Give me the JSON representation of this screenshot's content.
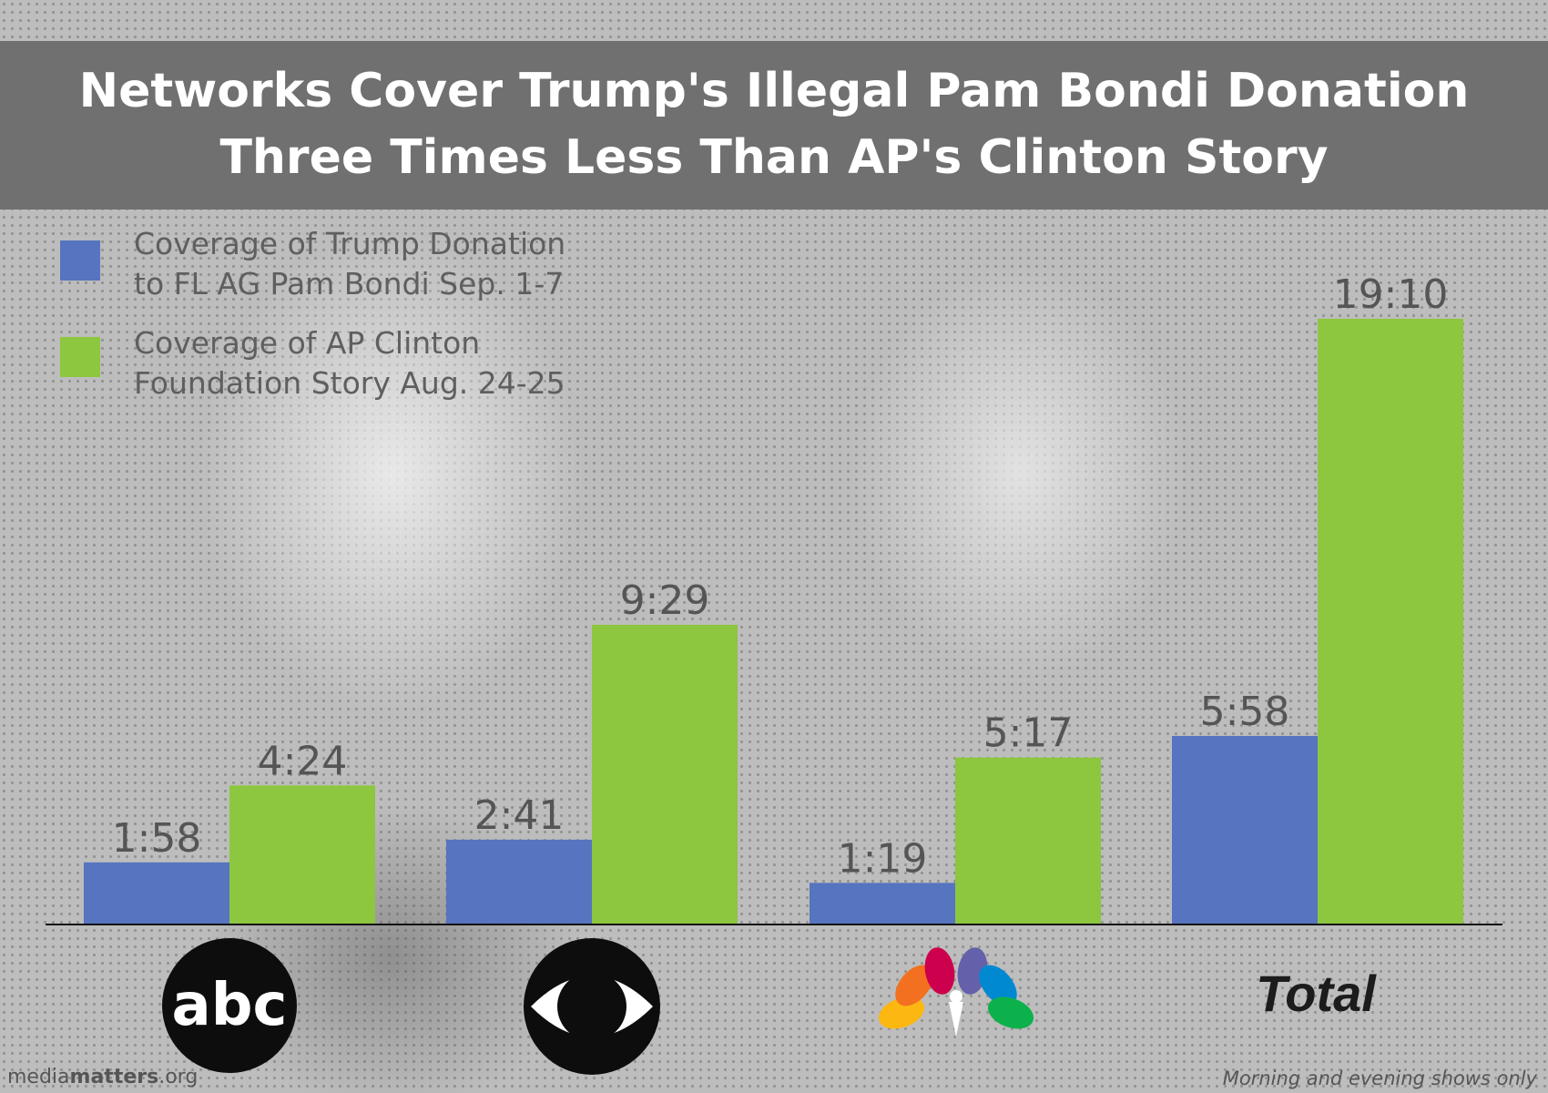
{
  "title_lines": [
    "Networks Cover Trump's Illegal Pam Bondi Donation",
    "Three Times Less Than AP's Clinton Story"
  ],
  "legend": [
    {
      "line1": "Coverage of Trump Donation",
      "line2": "to FL AG Pam Bondi Sep. 1-7",
      "color": "#5674bf"
    },
    {
      "line1": "Coverage of AP Clinton",
      "line2": "Foundation Story Aug. 24-25",
      "color": "#8dc63f"
    }
  ],
  "chart_data": {
    "type": "bar",
    "categories": [
      "abc",
      "CBS",
      "NBC",
      "Total"
    ],
    "category_display": [
      "abc-logo",
      "cbs-eye-logo",
      "nbc-peacock-logo",
      "Total"
    ],
    "series": [
      {
        "name": "Coverage of Trump Donation to FL AG Pam Bondi Sep. 1-7",
        "color": "#5674bf",
        "values": [
          118,
          161,
          79,
          358
        ],
        "labels": [
          "1:58",
          "2:41",
          "1:19",
          "5:58"
        ]
      },
      {
        "name": "Coverage of AP Clinton Foundation Story Aug. 24-25",
        "color": "#8dc63f",
        "values": [
          264,
          569,
          317,
          1150
        ],
        "labels": [
          "4:24",
          "9:29",
          "5:17",
          "19:10"
        ]
      }
    ],
    "value_unit": "seconds",
    "ylim": [
      0,
      1150
    ],
    "grid": false,
    "legend_position": "top-left"
  },
  "total_label": "Total",
  "logos": {
    "abc_text": "abc"
  },
  "footer": {
    "brand_light": "media",
    "brand_bold": "matters",
    "brand_suffix": ".org",
    "note": "Morning and evening shows only"
  }
}
